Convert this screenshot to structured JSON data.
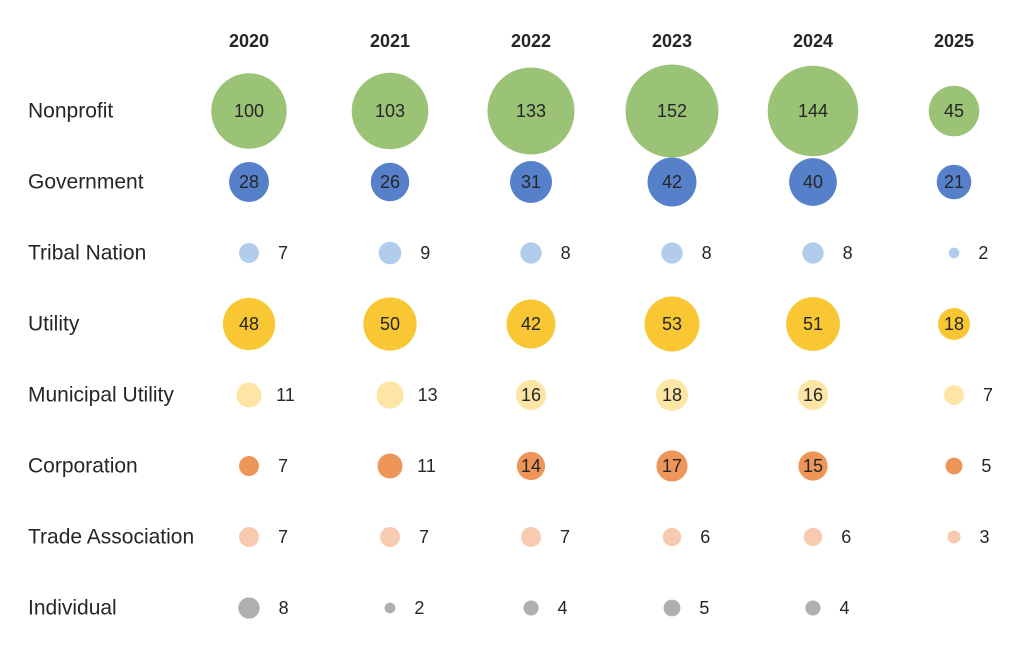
{
  "chart_data": {
    "type": "bubble-matrix",
    "title": "",
    "columns": [
      "2020",
      "2021",
      "2022",
      "2023",
      "2024",
      "2025"
    ],
    "rows": [
      {
        "name": "Nonprofit",
        "color": "#8fbc67",
        "values": [
          100,
          103,
          133,
          152,
          144,
          45
        ]
      },
      {
        "name": "Government",
        "color": "#4472c4",
        "values": [
          28,
          26,
          31,
          42,
          40,
          21
        ]
      },
      {
        "name": "Tribal Nation",
        "color": "#a9c8e9",
        "values": [
          7,
          9,
          8,
          8,
          8,
          2
        ]
      },
      {
        "name": "Utility",
        "color": "#f8c11e",
        "values": [
          48,
          50,
          42,
          53,
          51,
          18
        ]
      },
      {
        "name": "Municipal Utility",
        "color": "#fde39b",
        "values": [
          11,
          13,
          16,
          18,
          16,
          7
        ]
      },
      {
        "name": "Corporation",
        "color": "#ec8a47",
        "values": [
          7,
          11,
          14,
          17,
          15,
          5
        ]
      },
      {
        "name": "Trade Association",
        "color": "#f7c4a6",
        "values": [
          7,
          7,
          7,
          6,
          6,
          3
        ]
      },
      {
        "name": "Individual",
        "color": "#a6a6a6",
        "values": [
          8,
          2,
          4,
          5,
          4,
          null
        ]
      }
    ],
    "grid": false,
    "legend": "none"
  }
}
